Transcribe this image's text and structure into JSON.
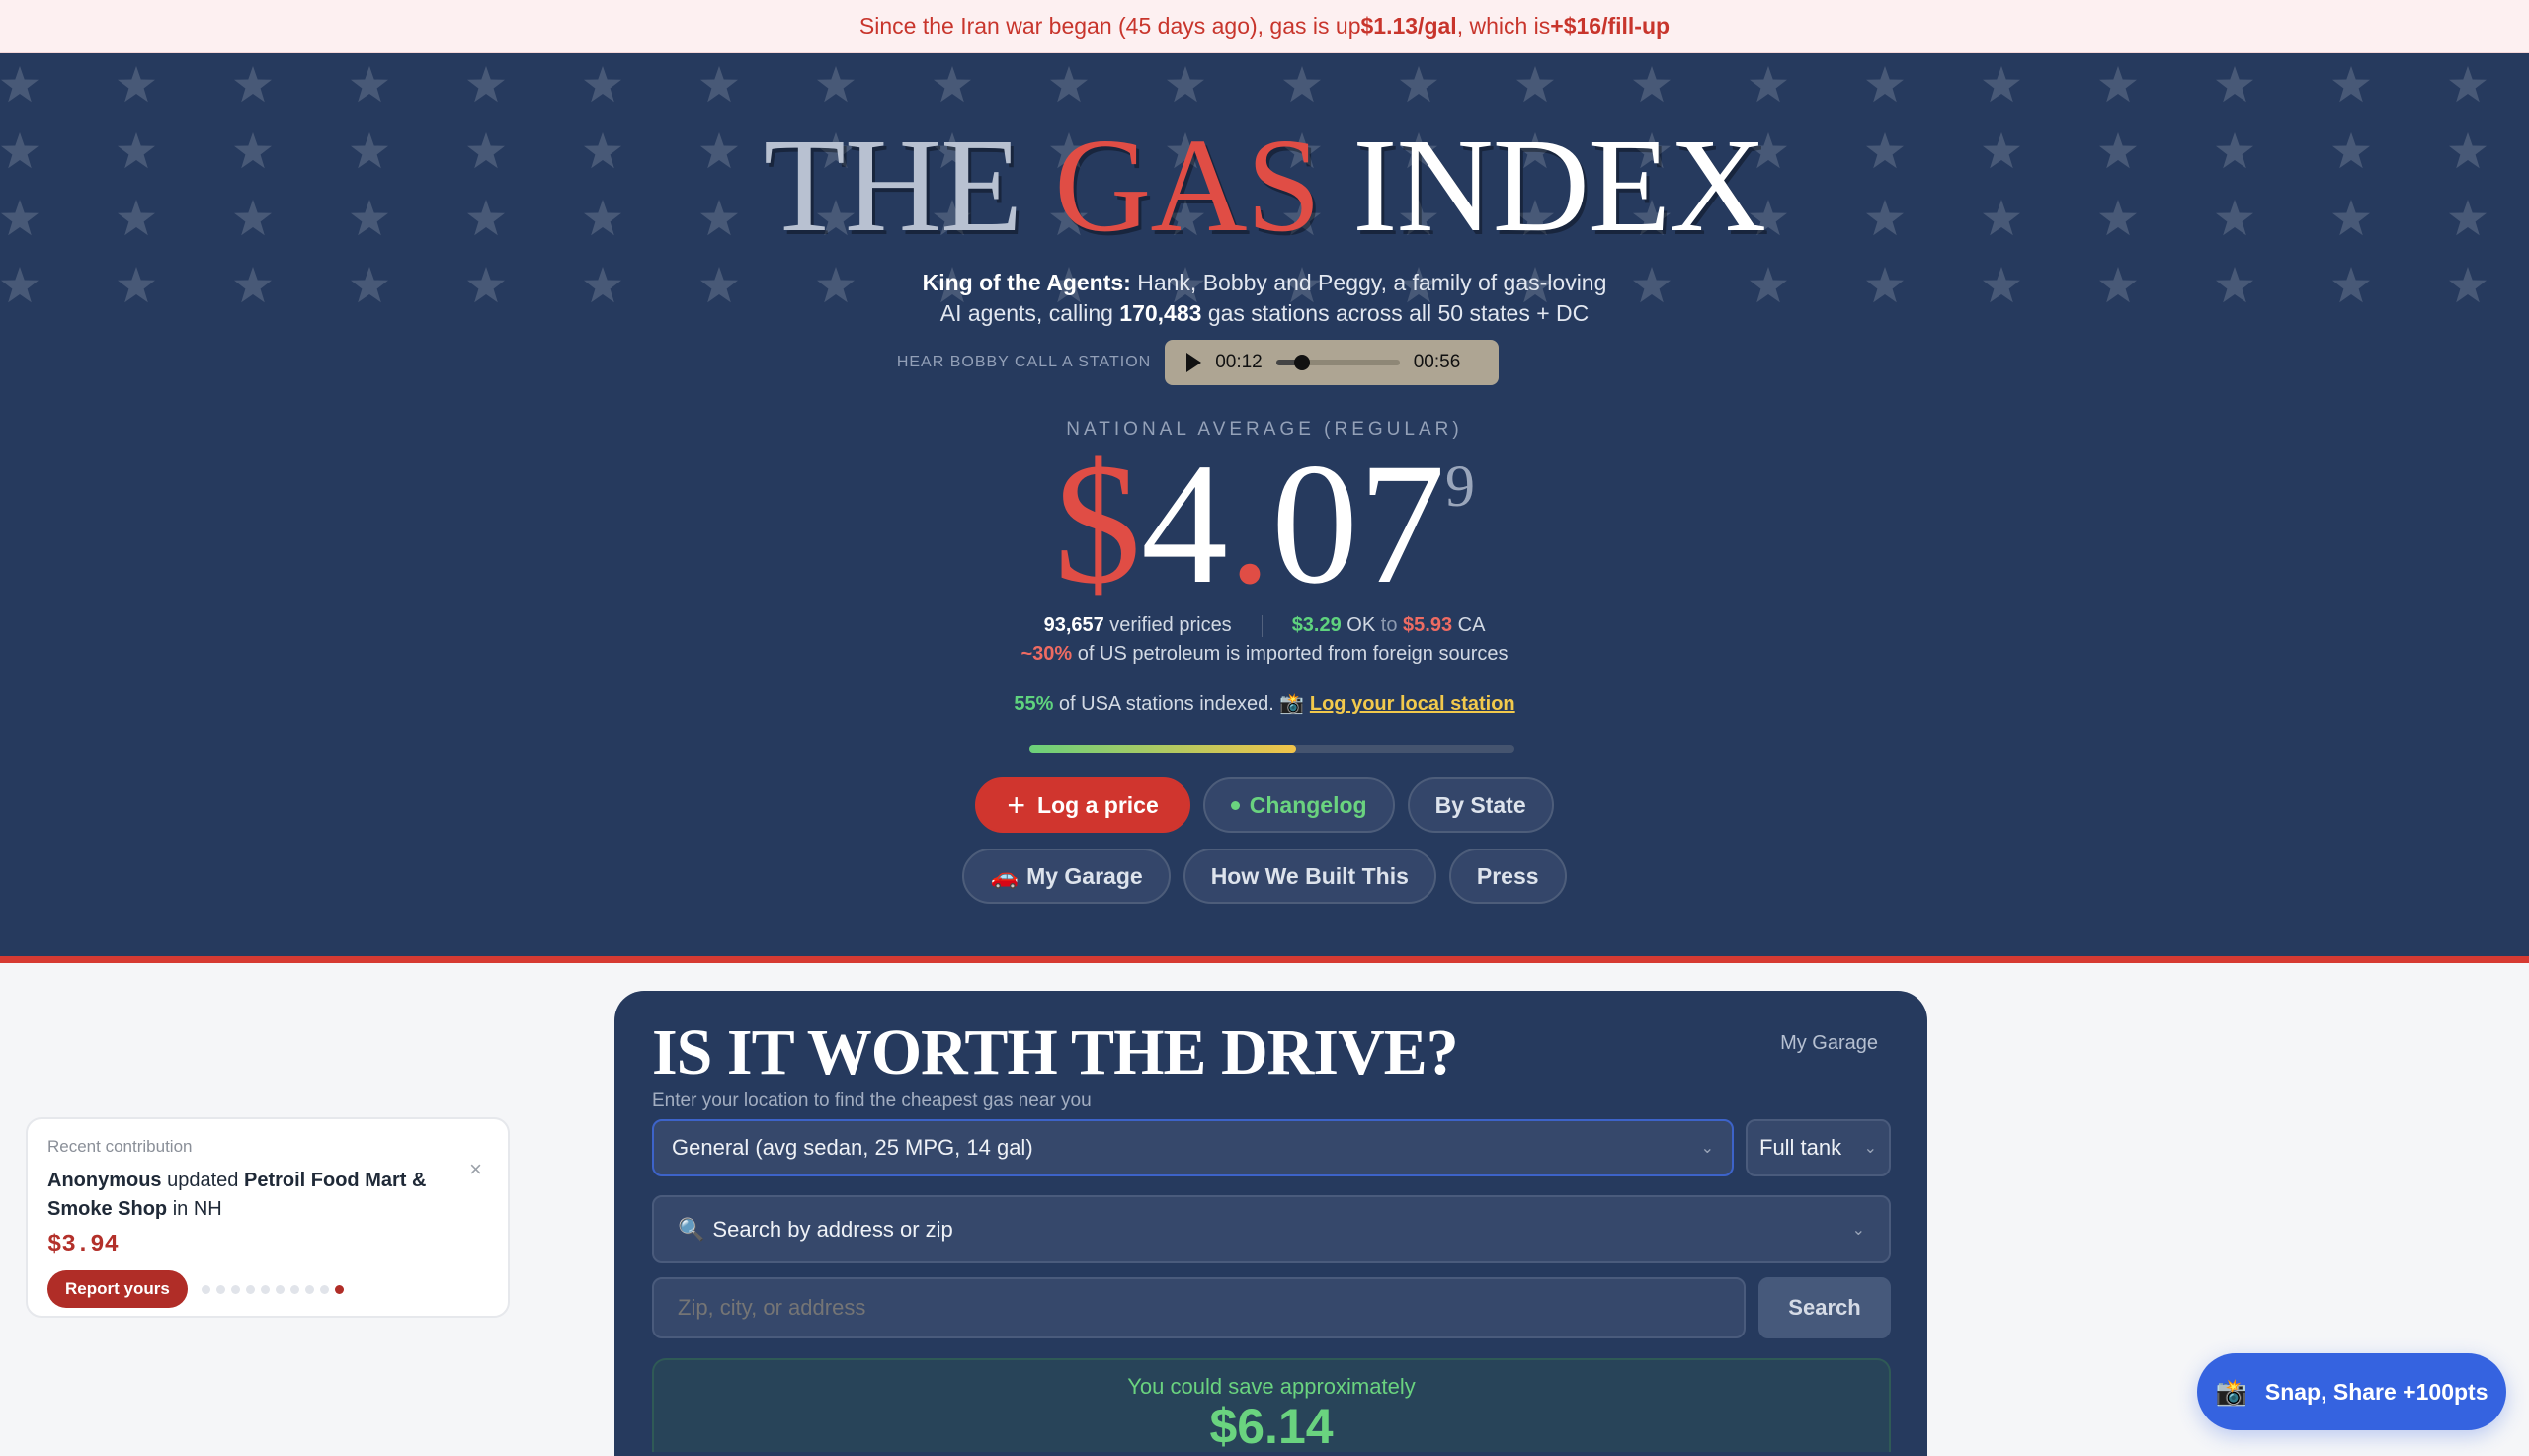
{
  "banner": {
    "prefix": "Since the Iran war began (45 days ago), gas is up ",
    "per_gal": "$1.13/gal",
    "middle": ", which is ",
    "fillup": "+$16/fill-up"
  },
  "hero": {
    "title": {
      "the": "THE",
      "gas": "GAS",
      "index": "INDEX"
    },
    "subtitle": {
      "bold": "King of the Agents:",
      "line1": " Hank, Bobby and Peggy, a family of gas-loving",
      "line2_pre": "AI agents, calling ",
      "stations": "170,483",
      "line2_post": " gas stations across all 50 states + DC"
    },
    "audio": {
      "label": "HEAR BOBBY CALL A STATION",
      "current": "00:12",
      "duration": "00:56",
      "progress_fraction": 0.21
    },
    "national_label": "NATIONAL AVERAGE (REGULAR)",
    "price": {
      "dollar": "$",
      "int": "4",
      "dot": ".",
      "cents": "07",
      "tenth": "9"
    },
    "stats": {
      "verified_count": "93,657",
      "verified_label": " verified prices",
      "low_price": "$3.29",
      "low_state": " OK ",
      "to": "to",
      "high_price": "$5.93",
      "high_state": " CA"
    },
    "import": {
      "pct": "~30%",
      "text": " of US petroleum is imported from foreign sources"
    },
    "indexed": {
      "pct": "55%",
      "text": " of USA stations indexed. ",
      "link_icon": "📸",
      "link": "Log your local station",
      "progress_percent": 55
    },
    "buttons": {
      "log_price": "Log a price",
      "changelog": "Changelog",
      "by_state": "By State",
      "garage_icon": "🚗",
      "my_garage": "My Garage",
      "how_built": "How We Built This",
      "press": "Press"
    }
  },
  "drive": {
    "title": "IS IT WORTH THE DRIVE?",
    "garage_link": "My Garage",
    "subtitle": "Enter your location to find the cheapest gas near you",
    "vehicle_select": "General (avg sedan, 25 MPG, 14 gal)",
    "fill_select": "Full tank",
    "search_mode_icon": "🔍",
    "search_mode": "Search by address or zip",
    "input_placeholder": "Zip, city, or address",
    "search_button": "Search",
    "save_label": "You could save approximately",
    "save_amount": "$6.14"
  },
  "contribution": {
    "label": "Recent contribution",
    "user": "Anonymous",
    "verb": " updated ",
    "station": "Petroil Food Mart & Smoke Shop",
    "loc": " in NH",
    "price": "$3.94",
    "button": "Report yours",
    "close": "×",
    "slide_count": 10,
    "active_slide": 10
  },
  "snap": {
    "icon": "📸",
    "label": "Snap, Share +100pts"
  },
  "colors": {
    "navy": "#263a5e",
    "red": "#d63a32",
    "green": "#6ad37f",
    "gold": "#f2c94c",
    "blue": "#3563e0"
  }
}
